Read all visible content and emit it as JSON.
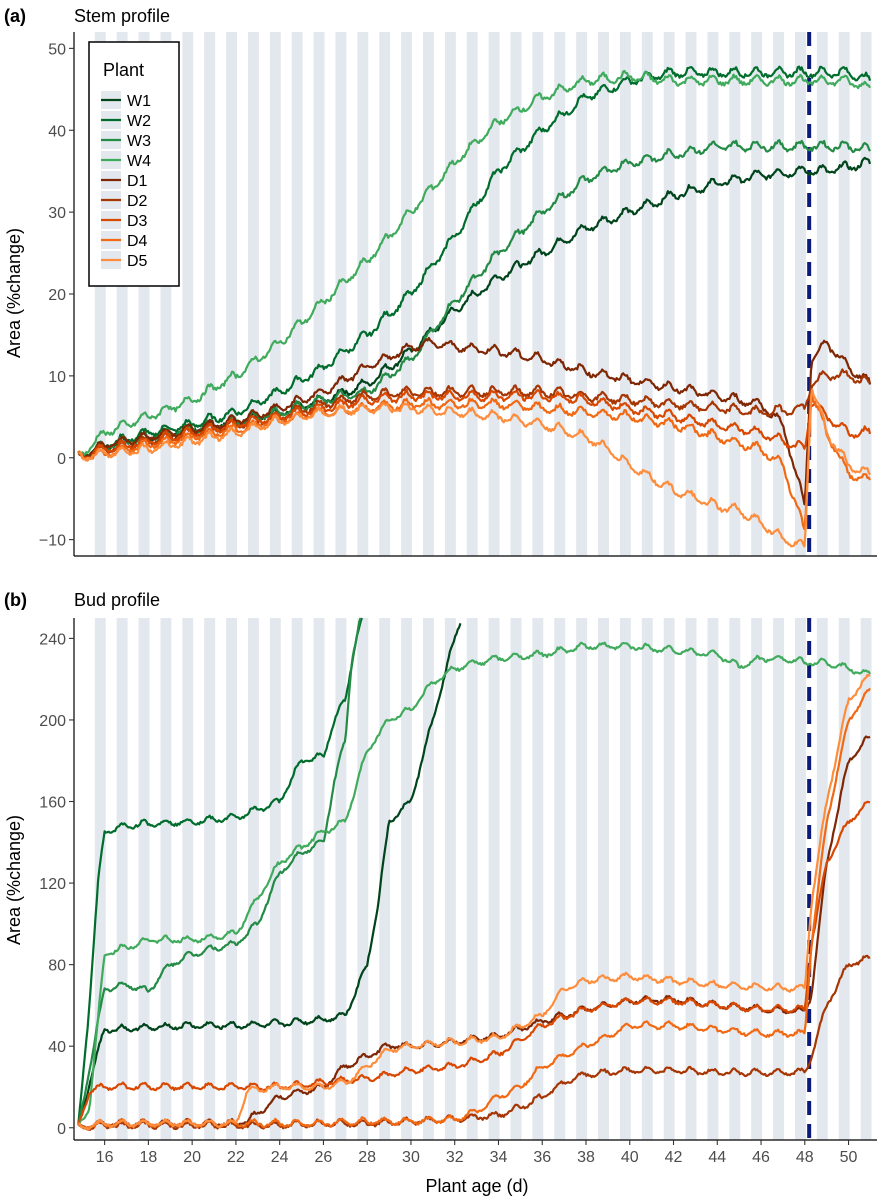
{
  "chart_data": [
    {
      "panel": "(a)",
      "title": "Stem profile",
      "type": "line",
      "xlabel": "Plant age (d)",
      "ylabel": "Area (%change)",
      "xlim": [
        14.6,
        51.3
      ],
      "ylim": [
        -12,
        52
      ],
      "yticks": [
        -10,
        0,
        10,
        20,
        30,
        40,
        50
      ],
      "event_line_x": 48.2,
      "night_shading": "grey bands, one per day",
      "legend": {
        "title": "Plant",
        "placement": "top-left"
      },
      "series": [
        {
          "name": "W1",
          "color": "#00441b",
          "x": [
            14.8,
            16,
            18,
            20,
            22,
            24,
            26,
            28,
            30,
            32,
            34,
            36,
            38,
            40,
            42,
            44,
            46,
            48,
            49,
            50,
            51
          ],
          "y": [
            0,
            1.5,
            2.5,
            3.5,
            4.5,
            5.5,
            7,
            9,
            13,
            18,
            22,
            25,
            28,
            30,
            32,
            33.5,
            34.5,
            35,
            35,
            35.5,
            36
          ]
        },
        {
          "name": "W2",
          "color": "#006d2c",
          "x": [
            14.8,
            16,
            18,
            20,
            22,
            24,
            26,
            28,
            30,
            32,
            34,
            36,
            38,
            40,
            42,
            44,
            46,
            48,
            49,
            50,
            51
          ],
          "y": [
            0,
            1.5,
            3,
            4,
            5.5,
            8,
            11,
            15,
            20,
            27,
            35,
            40,
            44,
            46,
            47,
            47,
            47,
            47,
            47,
            47,
            46
          ]
        },
        {
          "name": "W3",
          "color": "#238b45",
          "x": [
            14.8,
            16,
            18,
            20,
            22,
            24,
            26,
            28,
            30,
            32,
            34,
            36,
            38,
            40,
            42,
            44,
            46,
            48,
            49,
            50,
            51
          ],
          "y": [
            0,
            1.5,
            2.5,
            3.5,
            4.5,
            5.5,
            7,
            8,
            12,
            19,
            25,
            30,
            34,
            36,
            37,
            38,
            38,
            38,
            38,
            38,
            37.5
          ]
        },
        {
          "name": "W4",
          "color": "#41ab5d",
          "x": [
            14.8,
            16,
            18,
            20,
            22,
            24,
            26,
            28,
            30,
            32,
            34,
            36,
            38,
            40,
            42,
            44,
            46,
            48,
            49,
            50,
            51
          ],
          "y": [
            0,
            3,
            5,
            7,
            10,
            14,
            19,
            24,
            30,
            36,
            41,
            44,
            46,
            46.5,
            46,
            46,
            46,
            46,
            46,
            46,
            45
          ]
        },
        {
          "name": "D1",
          "color": "#7f2704",
          "x": [
            14.8,
            16,
            18,
            20,
            22,
            24,
            26,
            28,
            30,
            31,
            32,
            34,
            36,
            38,
            40,
            42,
            44,
            46,
            47,
            48,
            48.3,
            49,
            50,
            51
          ],
          "y": [
            0,
            1.5,
            2.5,
            3.5,
            4.5,
            6,
            8,
            11,
            13.5,
            14,
            13.5,
            13,
            12,
            10.5,
            9.5,
            8.5,
            7.5,
            6.5,
            4,
            -6,
            12,
            14,
            11,
            9
          ]
        },
        {
          "name": "D2",
          "color": "#a63603",
          "x": [
            14.8,
            16,
            18,
            20,
            22,
            24,
            26,
            28,
            30,
            32,
            34,
            36,
            38,
            40,
            42,
            44,
            46,
            48,
            48.3,
            49,
            50,
            51
          ],
          "y": [
            0,
            1,
            2,
            3,
            4,
            5,
            6.5,
            7.5,
            8,
            8,
            8,
            8,
            7.5,
            7,
            6.5,
            6,
            5.5,
            6,
            9,
            10,
            10,
            9
          ]
        },
        {
          "name": "D3",
          "color": "#d94801",
          "x": [
            14.8,
            16,
            18,
            20,
            22,
            24,
            26,
            28,
            30,
            32,
            34,
            36,
            38,
            40,
            42,
            44,
            46,
            48,
            48.3,
            49,
            50,
            51
          ],
          "y": [
            0,
            1,
            2,
            3,
            4,
            5,
            6,
            7,
            7.5,
            7.5,
            7.5,
            7.5,
            7,
            6,
            5,
            4,
            3,
            1,
            7,
            5,
            3,
            3
          ]
        },
        {
          "name": "D4",
          "color": "#f16913",
          "x": [
            14.8,
            16,
            18,
            20,
            22,
            24,
            26,
            28,
            30,
            32,
            34,
            36,
            38,
            40,
            42,
            44,
            46,
            47,
            48,
            48.3,
            49,
            50,
            51
          ],
          "y": [
            0,
            0.5,
            1.5,
            2.5,
            3.5,
            4.5,
            5.5,
            6,
            6.5,
            6.5,
            6.5,
            6,
            5.5,
            5,
            4,
            2.5,
            1,
            -1,
            -9,
            8,
            3,
            -2,
            -3
          ]
        },
        {
          "name": "D5",
          "color": "#fd8d3c",
          "x": [
            14.8,
            16,
            18,
            20,
            22,
            24,
            26,
            28,
            30,
            32,
            34,
            36,
            38,
            39,
            40,
            41,
            42,
            43,
            44,
            45,
            46,
            47,
            48,
            48.3,
            49,
            50,
            51
          ],
          "y": [
            0,
            0.5,
            1,
            2,
            3,
            4.5,
            5.5,
            6,
            6,
            5.5,
            5,
            4,
            2.5,
            1,
            -1,
            -2.5,
            -4,
            -5,
            -6,
            -6.5,
            -8,
            -10,
            -11,
            9,
            3,
            -1,
            -2
          ]
        }
      ]
    },
    {
      "panel": "(b)",
      "title": "Bud profile",
      "type": "line",
      "xlabel": "Plant age (d)",
      "ylabel": "Area (%change)",
      "xlim": [
        14.6,
        51.3
      ],
      "ylim": [
        -6,
        250
      ],
      "yticks": [
        0,
        40,
        80,
        120,
        160,
        200,
        240
      ],
      "xticks": [
        16,
        18,
        20,
        22,
        24,
        26,
        28,
        30,
        32,
        34,
        36,
        38,
        40,
        42,
        44,
        46,
        48,
        50
      ],
      "event_line_x": 48.2,
      "series": [
        {
          "name": "W1",
          "color": "#00441b",
          "x": [
            14.8,
            15.5,
            16,
            18,
            20,
            22,
            24,
            26,
            27,
            28,
            28.5,
            29,
            30,
            31,
            32,
            32.3
          ],
          "y": [
            0,
            30,
            48,
            49,
            50,
            50,
            51,
            53,
            55,
            80,
            110,
            150,
            160,
            200,
            240,
            250
          ]
        },
        {
          "name": "W2",
          "color": "#006d2c",
          "x": [
            14.8,
            15.3,
            15.7,
            16,
            17,
            18,
            20,
            22,
            24,
            25,
            26,
            26.5,
            27,
            27.5,
            27.8
          ],
          "y": [
            0,
            60,
            120,
            145,
            148,
            149,
            150,
            152,
            160,
            180,
            182,
            200,
            210,
            240,
            250
          ]
        },
        {
          "name": "W3",
          "color": "#238b45",
          "x": [
            14.8,
            15.5,
            16,
            17,
            18,
            19,
            20,
            21,
            22,
            23,
            24,
            25,
            26,
            26.5,
            27,
            27.3,
            27.7
          ],
          "y": [
            0,
            40,
            68,
            70,
            67,
            80,
            85,
            88,
            90,
            100,
            125,
            135,
            140,
            170,
            190,
            230,
            250
          ]
        },
        {
          "name": "W4",
          "color": "#41ab5d",
          "x": [
            14.8,
            15.3,
            16,
            18,
            20,
            22,
            24,
            26,
            27,
            28,
            29,
            30,
            31,
            32,
            33,
            34,
            36,
            38,
            40,
            42,
            44,
            45,
            46,
            47,
            48,
            49,
            50,
            51
          ],
          "y": [
            0,
            10,
            85,
            92,
            92,
            95,
            130,
            145,
            150,
            185,
            200,
            205,
            218,
            225,
            228,
            230,
            232,
            236,
            236,
            234,
            232,
            226,
            230,
            230,
            228,
            228,
            225,
            222
          ]
        },
        {
          "name": "D1",
          "color": "#7f2704",
          "x": [
            14.8,
            16,
            18,
            20,
            22,
            22.5,
            24,
            26,
            27,
            28,
            29,
            30,
            32,
            34,
            36,
            38,
            40,
            42,
            44,
            46,
            48,
            48.3,
            49,
            50,
            51
          ],
          "y": [
            0,
            2,
            2,
            2,
            2,
            3,
            15,
            20,
            30,
            35,
            40,
            40,
            42,
            45,
            52,
            58,
            62,
            63,
            60,
            58,
            57,
            65,
            130,
            180,
            192
          ]
        },
        {
          "name": "D2",
          "color": "#a63603",
          "x": [
            14.8,
            16,
            18,
            20,
            22,
            24,
            26,
            28,
            30,
            32,
            34,
            35,
            36,
            37,
            38,
            40,
            42,
            44,
            46,
            48,
            48.3,
            49,
            50,
            51
          ],
          "y": [
            0,
            1,
            1,
            1,
            1,
            1,
            2,
            2,
            3,
            4,
            6,
            10,
            15,
            22,
            26,
            28,
            28,
            27,
            27,
            27,
            35,
            60,
            80,
            83
          ]
        },
        {
          "name": "D3",
          "color": "#d94801",
          "x": [
            14.8,
            15.3,
            16,
            18,
            20,
            22,
            24,
            26,
            28,
            30,
            32,
            34,
            36,
            38,
            40,
            42,
            44,
            46,
            48,
            48.3,
            49,
            50,
            51
          ],
          "y": [
            0,
            18,
            20,
            20,
            20,
            20,
            20,
            22,
            24,
            28,
            30,
            36,
            50,
            58,
            62,
            62,
            60,
            58,
            58,
            90,
            130,
            150,
            160
          ]
        },
        {
          "name": "D4",
          "color": "#f16913",
          "x": [
            14.8,
            16,
            18,
            20,
            22,
            24,
            26,
            28,
            30,
            32,
            33,
            34,
            35,
            36,
            38,
            40,
            42,
            44,
            46,
            48,
            48.3,
            49,
            50,
            51
          ],
          "y": [
            0,
            2,
            2,
            2,
            2,
            2,
            2,
            3,
            3,
            4,
            8,
            15,
            20,
            30,
            40,
            50,
            50,
            48,
            46,
            46,
            90,
            150,
            200,
            215
          ]
        },
        {
          "name": "D5",
          "color": "#fd8d3c",
          "x": [
            14.8,
            16,
            18,
            20,
            22,
            22.5,
            24,
            26,
            27,
            28,
            29,
            30,
            32,
            34,
            36,
            37,
            38,
            40,
            42,
            44,
            46,
            48,
            48.3,
            49,
            50,
            51
          ],
          "y": [
            0,
            2,
            2,
            2,
            2,
            18,
            20,
            20,
            22,
            30,
            38,
            40,
            42,
            44,
            55,
            68,
            72,
            74,
            72,
            70,
            69,
            68,
            110,
            160,
            210,
            222
          ]
        }
      ]
    }
  ]
}
